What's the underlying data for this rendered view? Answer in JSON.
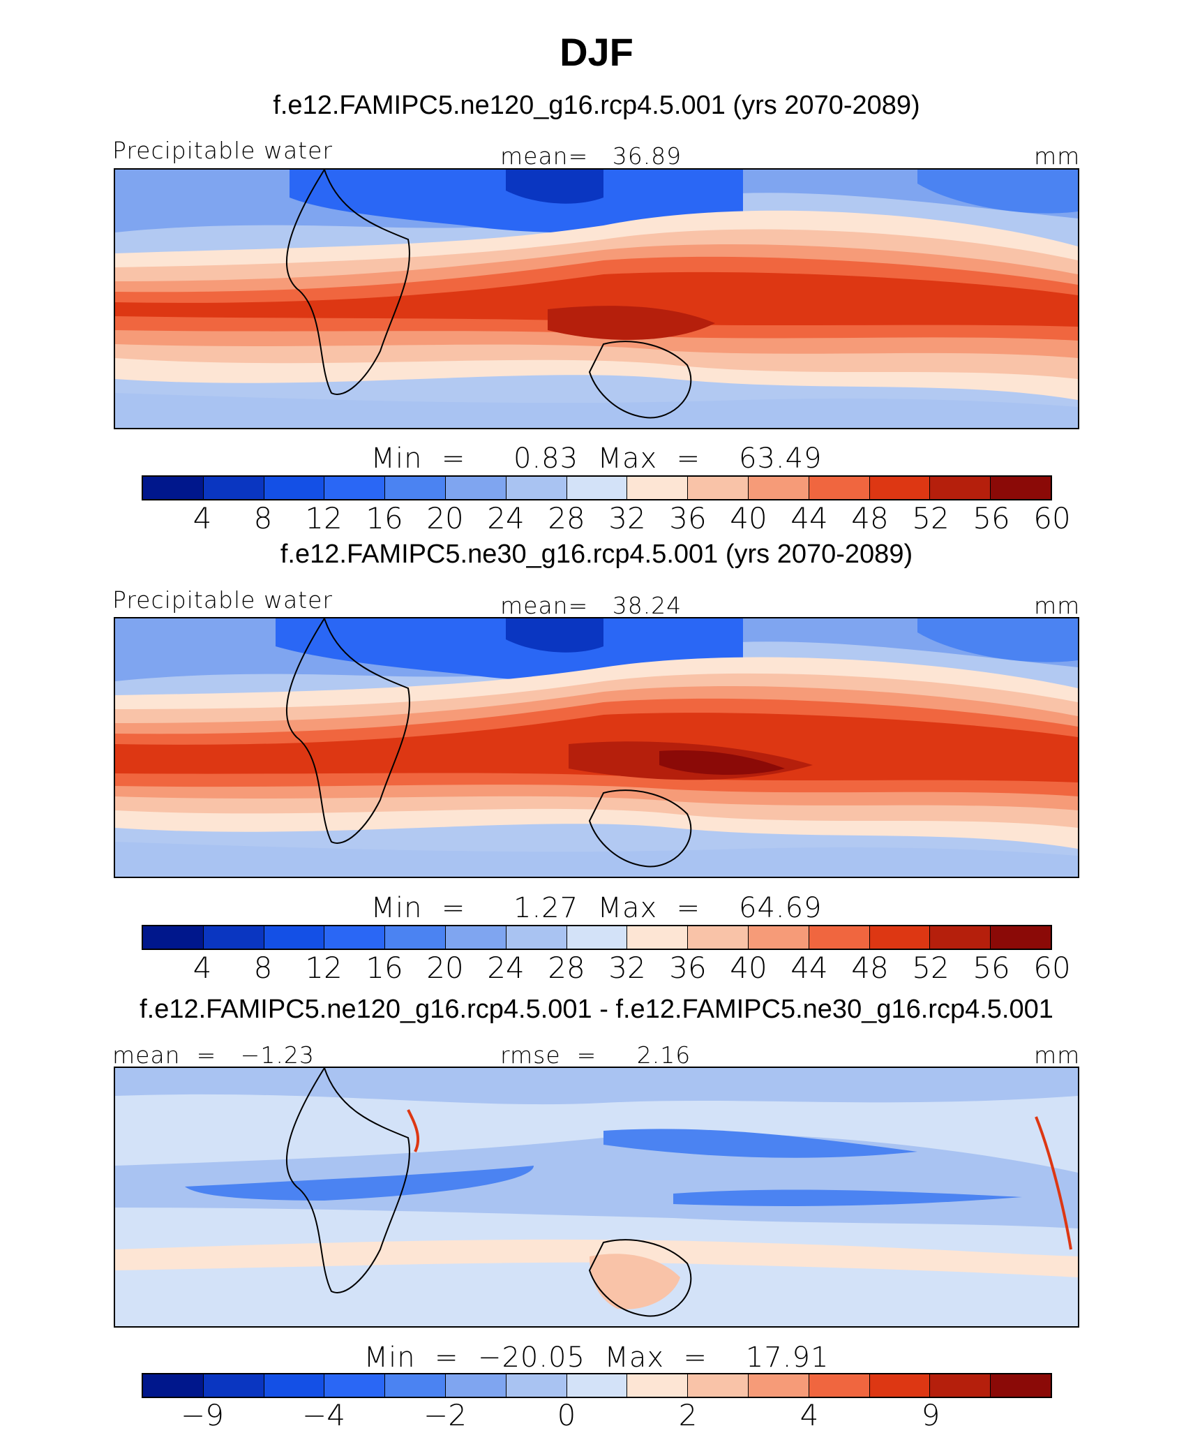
{
  "title": "DJF",
  "panels": [
    {
      "case": "f.e12.FAMIPC5.ne120_g16.rcp4.5.001 (yrs 2070-2089)",
      "variable": "Precipitable water",
      "stat": "mean=   36.89",
      "units": "mm",
      "minmax": "Min  =     0.83  Max  =    63.49"
    },
    {
      "case": "f.e12.FAMIPC5.ne30_g16.rcp4.5.001 (yrs 2070-2089)",
      "variable": "Precipitable water",
      "stat": "mean=   38.24",
      "units": "mm",
      "minmax": "Min  =     1.27  Max  =    64.69"
    },
    {
      "case": "f.e12.FAMIPC5.ne120_g16.rcp4.5.001 - f.e12.FAMIPC5.ne30_g16.rcp4.5.001",
      "stat_left": "mean  =   −1.23",
      "stat": "rmse  =     2.16",
      "units": "mm",
      "minmax": "Min  =  −20.05  Max  =    17.91"
    }
  ],
  "colorbars": {
    "field": {
      "colors": [
        "#00178c",
        "#0a36c1",
        "#1450e6",
        "#2a67f5",
        "#4b83f2",
        "#7fa5f0",
        "#a9c3f2",
        "#d3e2f8",
        "#fde5d4",
        "#f9c3a8",
        "#f69b78",
        "#f0663f",
        "#dd3713",
        "#b51f0c",
        "#8b0a07"
      ],
      "ticks": [
        "4",
        "8",
        "12",
        "16",
        "20",
        "24",
        "28",
        "32",
        "36",
        "40",
        "44",
        "48",
        "52",
        "56",
        "60"
      ]
    },
    "diff": {
      "colors": [
        "#00178c",
        "#0a36c1",
        "#1450e6",
        "#2a67f5",
        "#4b83f2",
        "#7fa5f0",
        "#a9c3f2",
        "#d3e2f8",
        "#fde5d4",
        "#f9c3a8",
        "#f69b78",
        "#f0663f",
        "#dd3713",
        "#b51f0c",
        "#8b0a07"
      ],
      "ticks": [
        {
          "label": "−9",
          "boundary": 1
        },
        {
          "label": "−4",
          "boundary": 3
        },
        {
          "label": "−2",
          "boundary": 5
        },
        {
          "label": "0",
          "boundary": 7
        },
        {
          "label": "2",
          "boundary": 9
        },
        {
          "label": "4",
          "boundary": 11
        },
        {
          "label": "9",
          "boundary": 13
        }
      ]
    }
  }
}
